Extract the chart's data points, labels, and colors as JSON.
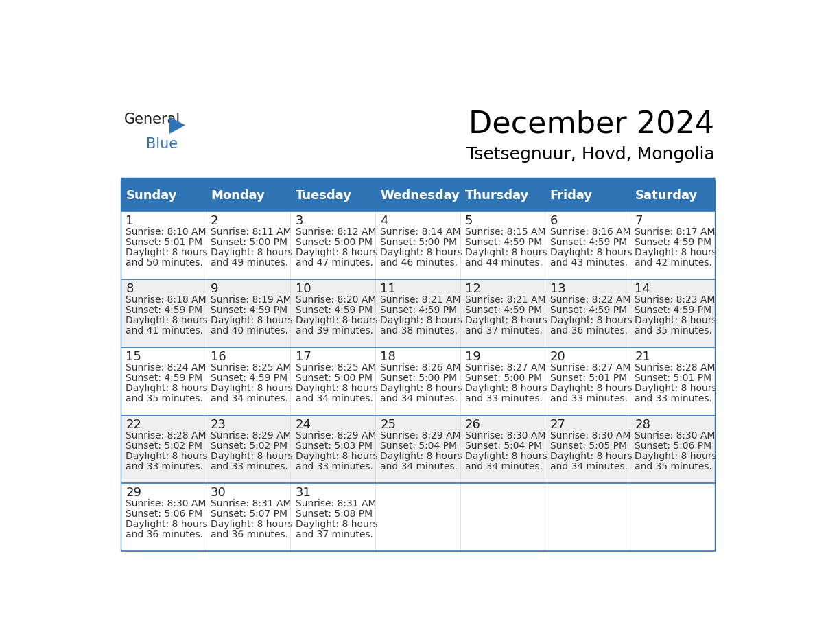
{
  "title": "December 2024",
  "subtitle": "Tsetsegnuur, Hovd, Mongolia",
  "header_bg": "#2E74B5",
  "header_text_color": "#FFFFFF",
  "odd_row_bg": "#FFFFFF",
  "even_row_bg": "#EFEFEF",
  "border_color": "#2E74B5",
  "day_headers": [
    "Sunday",
    "Monday",
    "Tuesday",
    "Wednesday",
    "Thursday",
    "Friday",
    "Saturday"
  ],
  "calendar_data": [
    [
      {
        "day": 1,
        "sunrise": "8:10 AM",
        "sunset": "5:01 PM",
        "daylight": "8 hours and 50 minutes."
      },
      {
        "day": 2,
        "sunrise": "8:11 AM",
        "sunset": "5:00 PM",
        "daylight": "8 hours and 49 minutes."
      },
      {
        "day": 3,
        "sunrise": "8:12 AM",
        "sunset": "5:00 PM",
        "daylight": "8 hours and 47 minutes."
      },
      {
        "day": 4,
        "sunrise": "8:14 AM",
        "sunset": "5:00 PM",
        "daylight": "8 hours and 46 minutes."
      },
      {
        "day": 5,
        "sunrise": "8:15 AM",
        "sunset": "4:59 PM",
        "daylight": "8 hours and 44 minutes."
      },
      {
        "day": 6,
        "sunrise": "8:16 AM",
        "sunset": "4:59 PM",
        "daylight": "8 hours and 43 minutes."
      },
      {
        "day": 7,
        "sunrise": "8:17 AM",
        "sunset": "4:59 PM",
        "daylight": "8 hours and 42 minutes."
      }
    ],
    [
      {
        "day": 8,
        "sunrise": "8:18 AM",
        "sunset": "4:59 PM",
        "daylight": "8 hours and 41 minutes."
      },
      {
        "day": 9,
        "sunrise": "8:19 AM",
        "sunset": "4:59 PM",
        "daylight": "8 hours and 40 minutes."
      },
      {
        "day": 10,
        "sunrise": "8:20 AM",
        "sunset": "4:59 PM",
        "daylight": "8 hours and 39 minutes."
      },
      {
        "day": 11,
        "sunrise": "8:21 AM",
        "sunset": "4:59 PM",
        "daylight": "8 hours and 38 minutes."
      },
      {
        "day": 12,
        "sunrise": "8:21 AM",
        "sunset": "4:59 PM",
        "daylight": "8 hours and 37 minutes."
      },
      {
        "day": 13,
        "sunrise": "8:22 AM",
        "sunset": "4:59 PM",
        "daylight": "8 hours and 36 minutes."
      },
      {
        "day": 14,
        "sunrise": "8:23 AM",
        "sunset": "4:59 PM",
        "daylight": "8 hours and 35 minutes."
      }
    ],
    [
      {
        "day": 15,
        "sunrise": "8:24 AM",
        "sunset": "4:59 PM",
        "daylight": "8 hours and 35 minutes."
      },
      {
        "day": 16,
        "sunrise": "8:25 AM",
        "sunset": "4:59 PM",
        "daylight": "8 hours and 34 minutes."
      },
      {
        "day": 17,
        "sunrise": "8:25 AM",
        "sunset": "5:00 PM",
        "daylight": "8 hours and 34 minutes."
      },
      {
        "day": 18,
        "sunrise": "8:26 AM",
        "sunset": "5:00 PM",
        "daylight": "8 hours and 34 minutes."
      },
      {
        "day": 19,
        "sunrise": "8:27 AM",
        "sunset": "5:00 PM",
        "daylight": "8 hours and 33 minutes."
      },
      {
        "day": 20,
        "sunrise": "8:27 AM",
        "sunset": "5:01 PM",
        "daylight": "8 hours and 33 minutes."
      },
      {
        "day": 21,
        "sunrise": "8:28 AM",
        "sunset": "5:01 PM",
        "daylight": "8 hours and 33 minutes."
      }
    ],
    [
      {
        "day": 22,
        "sunrise": "8:28 AM",
        "sunset": "5:02 PM",
        "daylight": "8 hours and 33 minutes."
      },
      {
        "day": 23,
        "sunrise": "8:29 AM",
        "sunset": "5:02 PM",
        "daylight": "8 hours and 33 minutes."
      },
      {
        "day": 24,
        "sunrise": "8:29 AM",
        "sunset": "5:03 PM",
        "daylight": "8 hours and 33 minutes."
      },
      {
        "day": 25,
        "sunrise": "8:29 AM",
        "sunset": "5:04 PM",
        "daylight": "8 hours and 34 minutes."
      },
      {
        "day": 26,
        "sunrise": "8:30 AM",
        "sunset": "5:04 PM",
        "daylight": "8 hours and 34 minutes."
      },
      {
        "day": 27,
        "sunrise": "8:30 AM",
        "sunset": "5:05 PM",
        "daylight": "8 hours and 34 minutes."
      },
      {
        "day": 28,
        "sunrise": "8:30 AM",
        "sunset": "5:06 PM",
        "daylight": "8 hours and 35 minutes."
      }
    ],
    [
      {
        "day": 29,
        "sunrise": "8:30 AM",
        "sunset": "5:06 PM",
        "daylight": "8 hours and 36 minutes."
      },
      {
        "day": 30,
        "sunrise": "8:31 AM",
        "sunset": "5:07 PM",
        "daylight": "8 hours and 36 minutes."
      },
      {
        "day": 31,
        "sunrise": "8:31 AM",
        "sunset": "5:08 PM",
        "daylight": "8 hours and 37 minutes."
      },
      null,
      null,
      null,
      null
    ]
  ],
  "logo_color_general": "#1a1a1a",
  "logo_color_blue": "#2E74B5",
  "title_fontsize": 32,
  "subtitle_fontsize": 18,
  "header_fontsize": 13,
  "day_num_fontsize": 13,
  "cell_fontsize": 10
}
